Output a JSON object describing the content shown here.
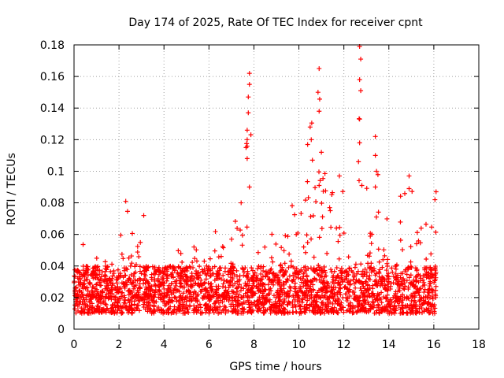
{
  "chart_data": {
    "type": "scatter",
    "title": "Day 174 of 2025, Rate Of TEC Index for receiver cpnt",
    "xlabel": "GPS time / hours",
    "ylabel": "ROTI / TECUs",
    "xlim": [
      0,
      18
    ],
    "ylim": [
      0,
      0.18
    ],
    "xticks": [
      0,
      2,
      4,
      6,
      8,
      10,
      12,
      14,
      16,
      18
    ],
    "xtick_labels": [
      "0",
      "2",
      "4",
      "6",
      "8",
      "10",
      "12",
      "14",
      "16",
      "18"
    ],
    "yticks": [
      0,
      0.02,
      0.04,
      0.06,
      0.08,
      0.1,
      0.12,
      0.14,
      0.16,
      0.18
    ],
    "ytick_labels": [
      "0",
      "0.02",
      "0.04",
      "0.06",
      "0.08",
      "0.1",
      "0.12",
      "0.14",
      "0.16",
      "0.18"
    ],
    "grid": true,
    "marker": "+",
    "color": "#ff0000",
    "series": [
      {
        "name": "ROTI",
        "x_range": [
          0,
          16.1
        ],
        "baseline_band": [
          0.01,
          0.04
        ],
        "envelope": [
          {
            "x": 0.0,
            "max": 0.045
          },
          {
            "x": 0.5,
            "max": 0.057
          },
          {
            "x": 1.0,
            "max": 0.045
          },
          {
            "x": 1.5,
            "max": 0.045
          },
          {
            "x": 2.0,
            "max": 0.06
          },
          {
            "x": 2.3,
            "max": 0.082
          },
          {
            "x": 2.8,
            "max": 0.06
          },
          {
            "x": 3.2,
            "max": 0.05
          },
          {
            "x": 4.0,
            "max": 0.04
          },
          {
            "x": 4.3,
            "max": 0.056
          },
          {
            "x": 5.0,
            "max": 0.045
          },
          {
            "x": 5.3,
            "max": 0.06
          },
          {
            "x": 6.0,
            "max": 0.05
          },
          {
            "x": 6.3,
            "max": 0.065
          },
          {
            "x": 7.0,
            "max": 0.072
          },
          {
            "x": 7.5,
            "max": 0.1
          },
          {
            "x": 7.8,
            "max": 0.163
          },
          {
            "x": 8.2,
            "max": 0.065
          },
          {
            "x": 9.0,
            "max": 0.06
          },
          {
            "x": 9.8,
            "max": 0.082
          },
          {
            "x": 10.5,
            "max": 0.127
          },
          {
            "x": 10.9,
            "max": 0.166
          },
          {
            "x": 11.3,
            "max": 0.08
          },
          {
            "x": 11.8,
            "max": 0.098
          },
          {
            "x": 12.2,
            "max": 0.07
          },
          {
            "x": 12.7,
            "max": 0.179
          },
          {
            "x": 13.0,
            "max": 0.09
          },
          {
            "x": 13.4,
            "max": 0.122
          },
          {
            "x": 14.0,
            "max": 0.075
          },
          {
            "x": 14.9,
            "max": 0.097
          },
          {
            "x": 15.5,
            "max": 0.065
          },
          {
            "x": 16.1,
            "max": 0.087
          }
        ],
        "notable_points": [
          {
            "x": 2.3,
            "y": 0.081
          },
          {
            "x": 3.1,
            "y": 0.072
          },
          {
            "x": 7.7,
            "y": 0.12
          },
          {
            "x": 7.8,
            "y": 0.162
          },
          {
            "x": 7.8,
            "y": 0.155
          },
          {
            "x": 7.75,
            "y": 0.147
          },
          {
            "x": 7.75,
            "y": 0.137
          },
          {
            "x": 7.7,
            "y": 0.126
          },
          {
            "x": 7.65,
            "y": 0.115
          },
          {
            "x": 7.7,
            "y": 0.108
          },
          {
            "x": 7.8,
            "y": 0.09
          },
          {
            "x": 10.5,
            "y": 0.128
          },
          {
            "x": 10.55,
            "y": 0.12
          },
          {
            "x": 10.9,
            "y": 0.165
          },
          {
            "x": 10.85,
            "y": 0.15
          },
          {
            "x": 10.9,
            "y": 0.138
          },
          {
            "x": 11.0,
            "y": 0.112
          },
          {
            "x": 10.6,
            "y": 0.107
          },
          {
            "x": 10.9,
            "y": 0.091
          },
          {
            "x": 11.8,
            "y": 0.097
          },
          {
            "x": 12.7,
            "y": 0.179
          },
          {
            "x": 12.75,
            "y": 0.171
          },
          {
            "x": 12.7,
            "y": 0.158
          },
          {
            "x": 12.75,
            "y": 0.151
          },
          {
            "x": 12.7,
            "y": 0.133
          },
          {
            "x": 12.7,
            "y": 0.118
          },
          {
            "x": 12.65,
            "y": 0.106
          },
          {
            "x": 12.8,
            "y": 0.091
          },
          {
            "x": 13.4,
            "y": 0.122
          },
          {
            "x": 13.4,
            "y": 0.11
          },
          {
            "x": 13.45,
            "y": 0.1
          },
          {
            "x": 13.4,
            "y": 0.09
          },
          {
            "x": 14.9,
            "y": 0.097
          },
          {
            "x": 14.9,
            "y": 0.089
          },
          {
            "x": 16.1,
            "y": 0.087
          },
          {
            "x": 16.05,
            "y": 0.082
          }
        ]
      }
    ]
  }
}
